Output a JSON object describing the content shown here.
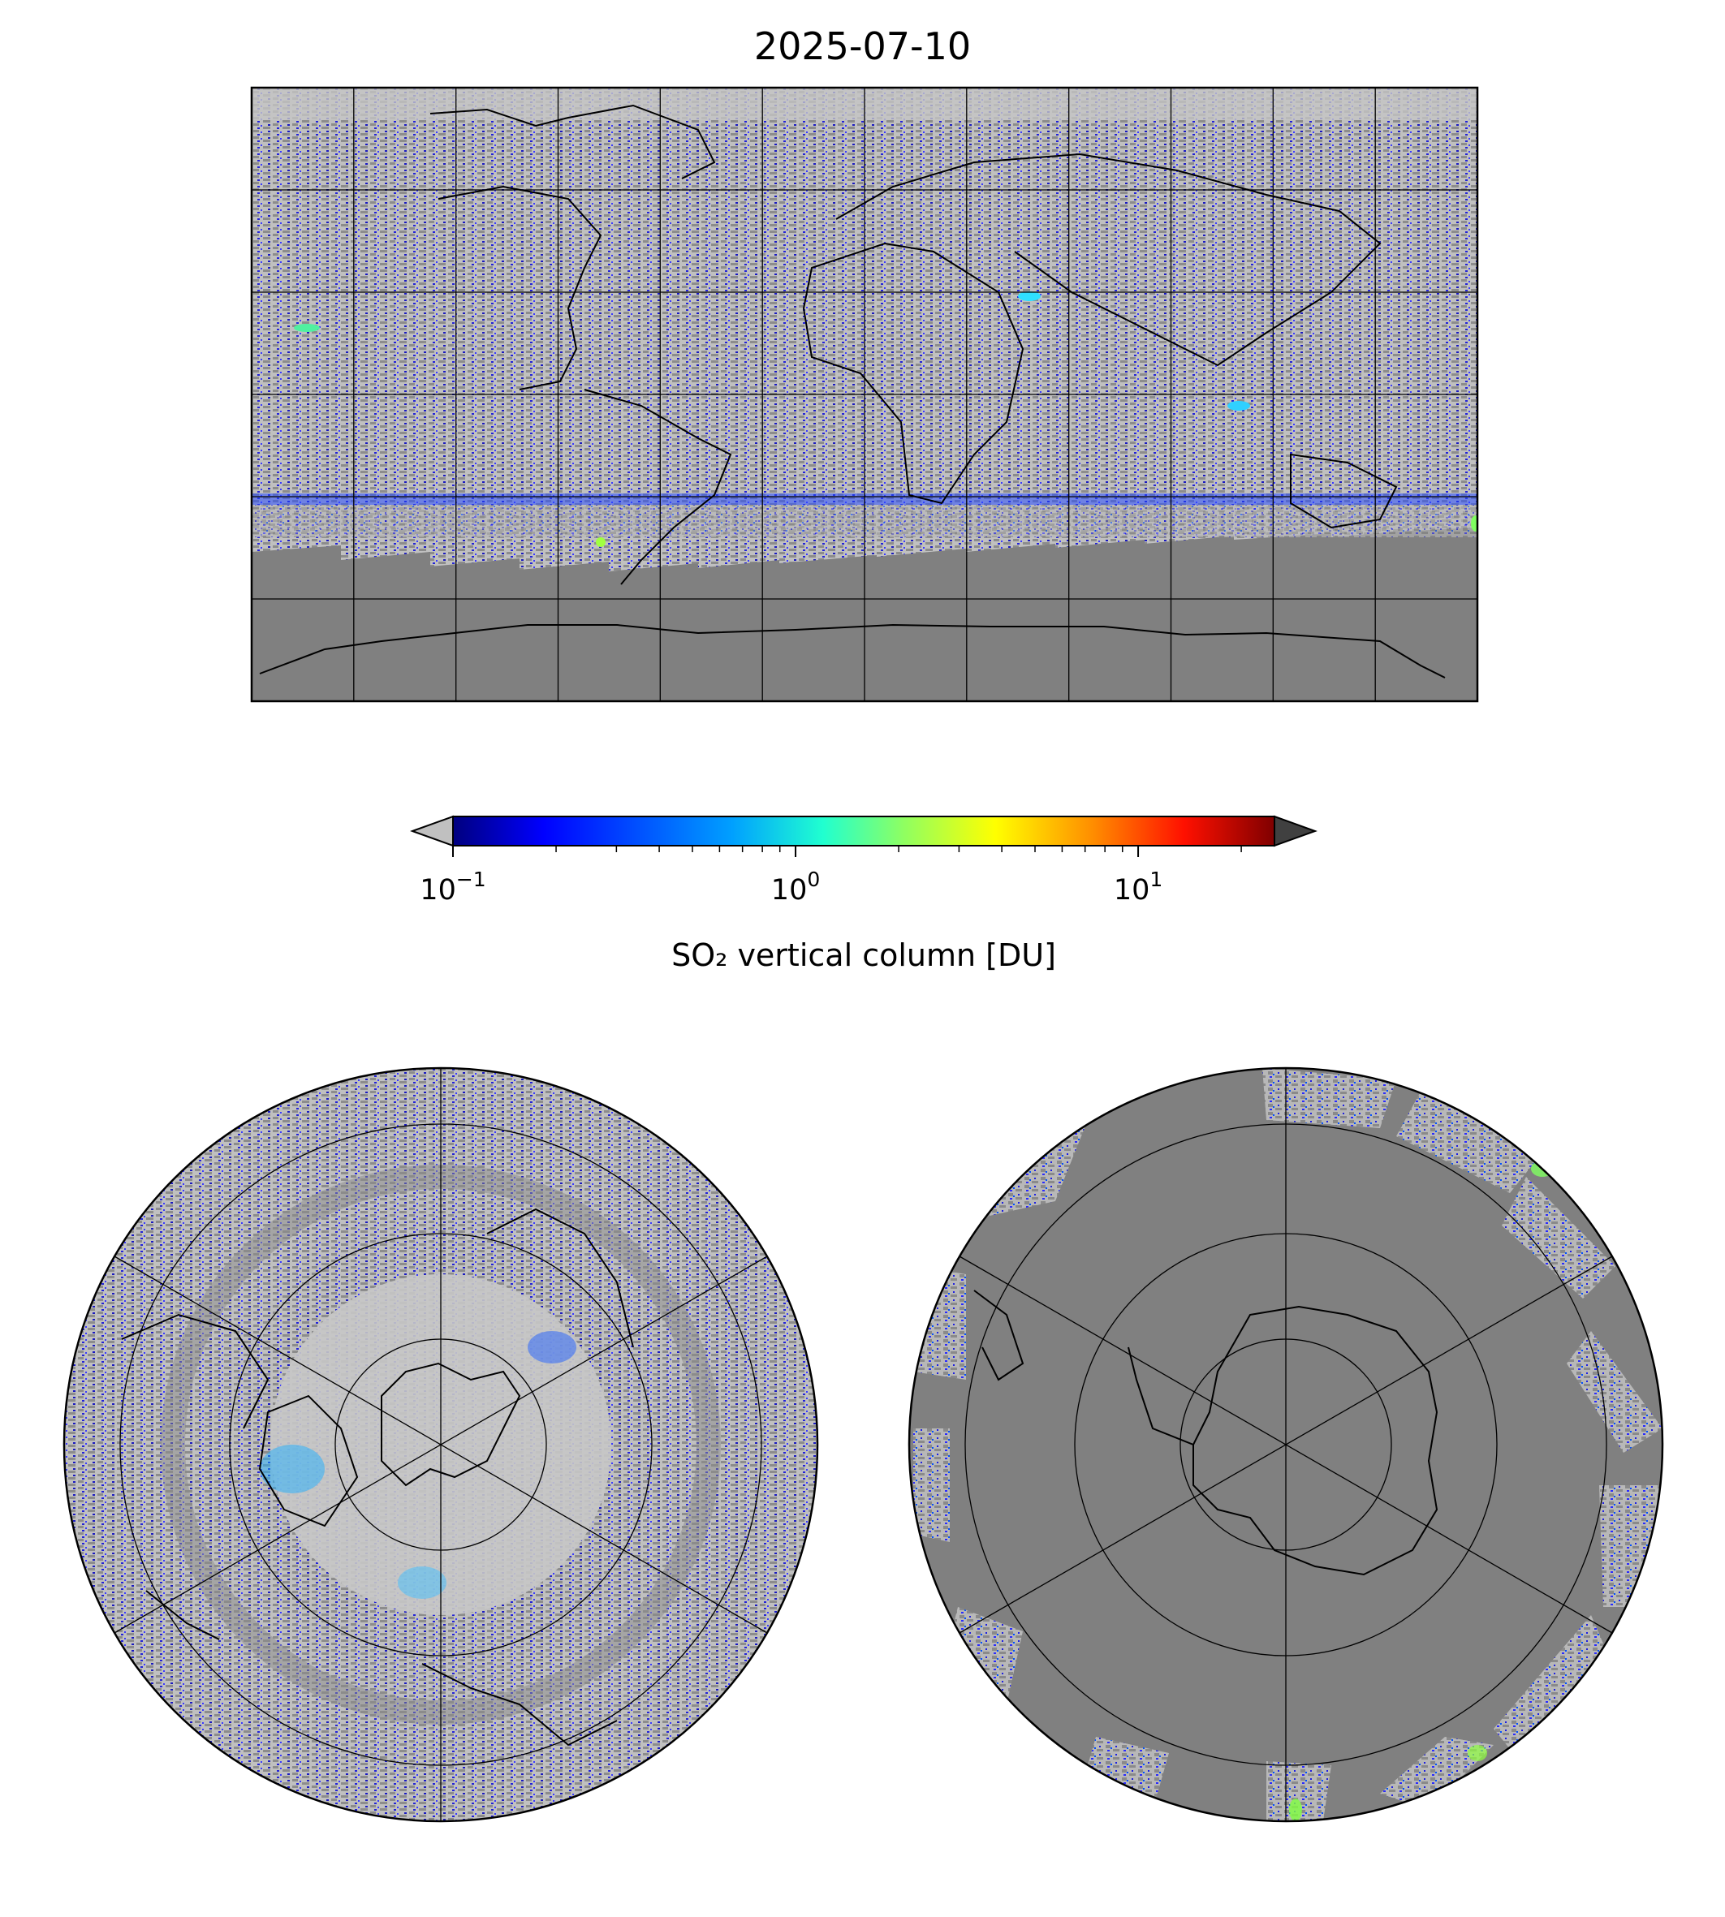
{
  "title": "2025-07-10",
  "colorbar": {
    "label": "SO₂ vertical column [DU]",
    "scale": "log",
    "range": [
      0.1,
      25
    ],
    "ticks": [
      {
        "base": "10",
        "exp": "−1",
        "value": 0.1
      },
      {
        "base": "10",
        "exp": "0",
        "value": 1
      },
      {
        "base": "10",
        "exp": "1",
        "value": 10
      }
    ],
    "colormap": [
      "#00007f",
      "#0000ff",
      "#007fff",
      "#00ffff",
      "#7fff7f",
      "#ffff00",
      "#ff7f00",
      "#ff0000",
      "#7f0000"
    ],
    "under_color": "#c0c0c0",
    "over_color": "#404040",
    "extend": "both"
  },
  "maps": [
    {
      "name": "global",
      "projection": "equirectangular",
      "background": "#c0c0c0",
      "no_data_color": "#808080"
    },
    {
      "name": "north-polar",
      "projection": "polar stereographic (north)",
      "background": "#c0c0c0",
      "no_data_color": "#808080"
    },
    {
      "name": "south-polar",
      "projection": "polar stereographic (south)",
      "background": "#808080",
      "no_data_color": "#808080"
    }
  ]
}
